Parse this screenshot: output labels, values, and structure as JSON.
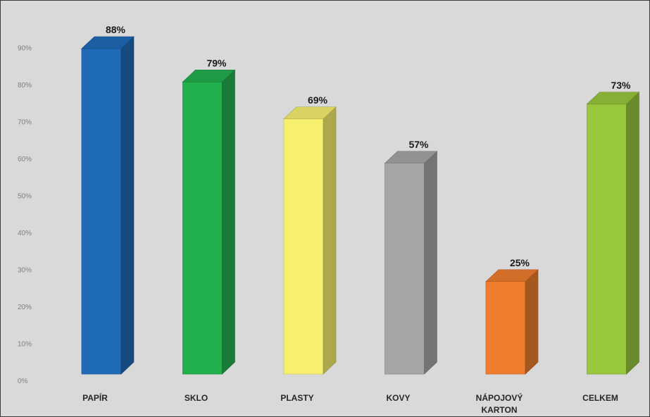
{
  "chart_data": {
    "type": "bar",
    "style": "3d-column",
    "categories": [
      "PAPÍR",
      "SKLO",
      "PLASTY",
      "KOVY",
      "NÁPOJOVÝ KARTON",
      "CELKEM"
    ],
    "category_lines": [
      [
        "PAPÍR"
      ],
      [
        "SKLO"
      ],
      [
        "PLASTY"
      ],
      [
        "KOVY"
      ],
      [
        "NÁPOJOVÝ",
        "KARTON"
      ],
      [
        "CELKEM"
      ]
    ],
    "values": [
      88,
      79,
      69,
      57,
      25,
      73
    ],
    "data_labels": [
      "88%",
      "79%",
      "69%",
      "57%",
      "25%",
      "73%"
    ],
    "colors": [
      "#1f6bb8",
      "#22b04d",
      "#f7f06e",
      "#a6a6a6",
      "#ef7d2d",
      "#98c73d"
    ],
    "y_ticks": [
      "0%",
      "10%",
      "20%",
      "30%",
      "40%",
      "50%",
      "60%",
      "70%",
      "80%",
      "90%"
    ],
    "ylim": [
      0,
      100
    ],
    "grid": false,
    "legend": "none",
    "title": "",
    "xlabel": "",
    "ylabel": ""
  }
}
